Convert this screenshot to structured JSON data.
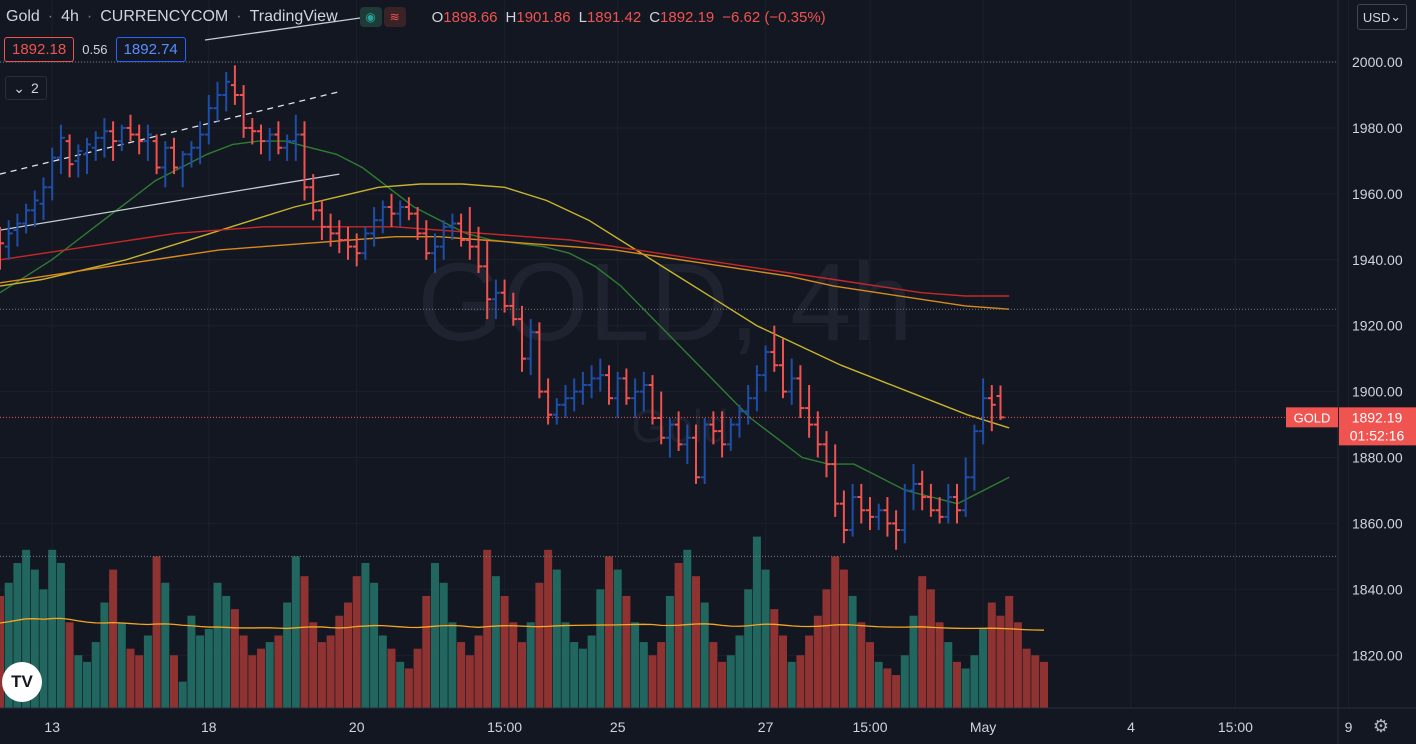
{
  "header": {
    "symbol": "Gold",
    "interval": "4h",
    "exchange": "CURRENCYCOM",
    "source": "TradingView",
    "ohlc": {
      "o_label": "O",
      "o": "1898.66",
      "h_label": "H",
      "h": "1901.86",
      "l_label": "L",
      "l": "1891.42",
      "c_label": "C",
      "c": "1892.19",
      "change": "−6.62 (−0.35%)"
    }
  },
  "trade": {
    "sell": "1892.18",
    "spread": "0.56",
    "buy": "1892.74"
  },
  "indicators_count": "2",
  "currency": "USD",
  "watermark": {
    "symbol": "GOLD, 4h",
    "description": "Gold"
  },
  "last_price": {
    "ticker": "GOLD",
    "price": "1892.19",
    "countdown": "01:52:16"
  },
  "colors": {
    "up": "#1e4ea8",
    "down": "#ef5350",
    "vol_up": "#22675f",
    "vol_down": "#8e3232",
    "ma_green": "#2e7d32",
    "ma_yellow": "#c8b42c",
    "ma_orange": "#d98a1c",
    "ma_red": "#c62828",
    "vol_ma": "#f5a623",
    "background": "#131722"
  },
  "chart_data": {
    "type": "ohlc-bar",
    "ylim": [
      1804,
      2017
    ],
    "y_ticks": [
      1820,
      1840,
      1860,
      1880,
      1900,
      1920,
      1940,
      1960,
      1980,
      2000
    ],
    "x_ticks": [
      {
        "label": "13",
        "bar": 6
      },
      {
        "label": "18",
        "bar": 24
      },
      {
        "label": "20",
        "bar": 41
      },
      {
        "label": "15:00",
        "bar": 58
      },
      {
        "label": "25",
        "bar": 71
      },
      {
        "label": "27",
        "bar": 88
      },
      {
        "label": "15:00",
        "bar": 100
      },
      {
        "label": "May",
        "bar": 113
      },
      {
        "label": "4",
        "bar": 130
      },
      {
        "label": "15:00",
        "bar": 142
      },
      {
        "label": "9",
        "bar": 155
      }
    ],
    "ohlc": [
      [
        1946,
        1950,
        1937,
        1945
      ],
      [
        1944,
        1952,
        1940,
        1948
      ],
      [
        1949,
        1954,
        1944,
        1951
      ],
      [
        1951,
        1957,
        1948,
        1955
      ],
      [
        1955,
        1961,
        1950,
        1958
      ],
      [
        1957,
        1965,
        1952,
        1962
      ],
      [
        1962,
        1974,
        1958,
        1971
      ],
      [
        1971,
        1981,
        1966,
        1977
      ],
      [
        1976,
        1978,
        1965,
        1969
      ],
      [
        1970,
        1975,
        1965,
        1973
      ],
      [
        1972,
        1977,
        1966,
        1975
      ],
      [
        1974,
        1979,
        1970,
        1977
      ],
      [
        1977,
        1983,
        1971,
        1979
      ],
      [
        1979,
        1982,
        1970,
        1976
      ],
      [
        1976,
        1981,
        1973,
        1980
      ],
      [
        1980,
        1984,
        1976,
        1978
      ],
      [
        1978,
        1981,
        1972,
        1976
      ],
      [
        1976,
        1981,
        1970,
        1978
      ],
      [
        1976,
        1978,
        1966,
        1968
      ],
      [
        1968,
        1976,
        1962,
        1974
      ],
      [
        1974,
        1977,
        1966,
        1968
      ],
      [
        1968,
        1973,
        1962,
        1972
      ],
      [
        1972,
        1976,
        1968,
        1974
      ],
      [
        1974,
        1982,
        1969,
        1978
      ],
      [
        1978,
        1990,
        1975,
        1986
      ],
      [
        1986,
        1994,
        1982,
        1990
      ],
      [
        1990,
        1997,
        1985,
        1994
      ],
      [
        1993,
        1999,
        1987,
        1990
      ],
      [
        1990,
        1993,
        1977,
        1980
      ],
      [
        1980,
        1983,
        1975,
        1979
      ],
      [
        1979,
        1981,
        1972,
        1976
      ],
      [
        1976,
        1980,
        1970,
        1978
      ],
      [
        1978,
        1982,
        1972,
        1974
      ],
      [
        1974,
        1978,
        1970,
        1976
      ],
      [
        1976,
        1984,
        1970,
        1978
      ],
      [
        1978,
        1982,
        1958,
        1962
      ],
      [
        1962,
        1966,
        1952,
        1955
      ],
      [
        1955,
        1958,
        1946,
        1950
      ],
      [
        1950,
        1954,
        1944,
        1948
      ],
      [
        1948,
        1952,
        1942,
        1946
      ],
      [
        1946,
        1950,
        1940,
        1944
      ],
      [
        1944,
        1948,
        1938,
        1942
      ],
      [
        1942,
        1950,
        1940,
        1948
      ],
      [
        1948,
        1956,
        1944,
        1952
      ],
      [
        1952,
        1958,
        1948,
        1956
      ],
      [
        1956,
        1960,
        1950,
        1954
      ],
      [
        1954,
        1958,
        1950,
        1956
      ],
      [
        1956,
        1959,
        1952,
        1954
      ],
      [
        1954,
        1956,
        1946,
        1948
      ],
      [
        1948,
        1952,
        1940,
        1942
      ],
      [
        1942,
        1948,
        1936,
        1944
      ],
      [
        1944,
        1952,
        1940,
        1950
      ],
      [
        1950,
        1954,
        1946,
        1951
      ],
      [
        1951,
        1954,
        1944,
        1946
      ],
      [
        1946,
        1956,
        1940,
        1944
      ],
      [
        1944,
        1950,
        1936,
        1938
      ],
      [
        1938,
        1946,
        1922,
        1928
      ],
      [
        1928,
        1934,
        1922,
        1930
      ],
      [
        1930,
        1934,
        1924,
        1926
      ],
      [
        1926,
        1930,
        1920,
        1922
      ],
      [
        1922,
        1926,
        1906,
        1910
      ],
      [
        1910,
        1922,
        1905,
        1918
      ],
      [
        1918,
        1921,
        1898,
        1900
      ],
      [
        1900,
        1904,
        1890,
        1893
      ],
      [
        1893,
        1898,
        1890,
        1896
      ],
      [
        1896,
        1902,
        1892,
        1898
      ],
      [
        1898,
        1904,
        1894,
        1900
      ],
      [
        1900,
        1906,
        1896,
        1902
      ],
      [
        1902,
        1908,
        1898,
        1904
      ],
      [
        1904,
        1910,
        1900,
        1905
      ],
      [
        1905,
        1908,
        1896,
        1898
      ],
      [
        1898,
        1906,
        1892,
        1904
      ],
      [
        1904,
        1907,
        1896,
        1898
      ],
      [
        1898,
        1904,
        1892,
        1900
      ],
      [
        1900,
        1906,
        1894,
        1902
      ],
      [
        1902,
        1905,
        1890,
        1892
      ],
      [
        1892,
        1900,
        1884,
        1886
      ],
      [
        1886,
        1892,
        1880,
        1890
      ],
      [
        1890,
        1894,
        1882,
        1884
      ],
      [
        1884,
        1890,
        1878,
        1886
      ],
      [
        1886,
        1890,
        1872,
        1874
      ],
      [
        1874,
        1892,
        1872,
        1890
      ],
      [
        1890,
        1894,
        1884,
        1888
      ],
      [
        1888,
        1894,
        1880,
        1884
      ],
      [
        1884,
        1892,
        1882,
        1890
      ],
      [
        1890,
        1896,
        1886,
        1894
      ],
      [
        1894,
        1902,
        1890,
        1898
      ],
      [
        1898,
        1908,
        1894,
        1905
      ],
      [
        1905,
        1914,
        1900,
        1912
      ],
      [
        1912,
        1920,
        1906,
        1908
      ],
      [
        1908,
        1916,
        1898,
        1900
      ],
      [
        1900,
        1910,
        1896,
        1904
      ],
      [
        1904,
        1908,
        1892,
        1895
      ],
      [
        1895,
        1902,
        1886,
        1890
      ],
      [
        1890,
        1894,
        1880,
        1884
      ],
      [
        1884,
        1888,
        1874,
        1878
      ],
      [
        1878,
        1884,
        1862,
        1866
      ],
      [
        1866,
        1870,
        1854,
        1858
      ],
      [
        1858,
        1872,
        1856,
        1868
      ],
      [
        1868,
        1872,
        1860,
        1864
      ],
      [
        1864,
        1868,
        1858,
        1862
      ],
      [
        1862,
        1866,
        1858,
        1864
      ],
      [
        1864,
        1868,
        1856,
        1860
      ],
      [
        1860,
        1864,
        1852,
        1858
      ],
      [
        1858,
        1872,
        1854,
        1870
      ],
      [
        1870,
        1878,
        1864,
        1872
      ],
      [
        1872,
        1876,
        1864,
        1868
      ],
      [
        1868,
        1872,
        1862,
        1864
      ],
      [
        1864,
        1868,
        1860,
        1862
      ],
      [
        1862,
        1872,
        1860,
        1868
      ],
      [
        1868,
        1872,
        1860,
        1864
      ],
      [
        1864,
        1880,
        1862,
        1874
      ],
      [
        1874,
        1890,
        1870,
        1888
      ],
      [
        1888,
        1904,
        1884,
        1898
      ],
      [
        1898,
        1902,
        1888,
        1896
      ],
      [
        1898.66,
        1901.86,
        1891.42,
        1892.19
      ]
    ],
    "volume": [
      1838,
      1842,
      1848,
      1852,
      1846,
      1840,
      1852,
      1848,
      1830,
      1820,
      1818,
      1824,
      1836,
      1846,
      1830,
      1822,
      1820,
      1826,
      1850,
      1842,
      1820,
      1812,
      1832,
      1826,
      1828,
      1842,
      1838,
      1834,
      1826,
      1820,
      1822,
      1824,
      1826,
      1836,
      1850,
      1844,
      1830,
      1824,
      1826,
      1832,
      1836,
      1844,
      1848,
      1842,
      1826,
      1822,
      1818,
      1816,
      1822,
      1838,
      1848,
      1842,
      1830,
      1824,
      1820,
      1826,
      1852,
      1844,
      1838,
      1830,
      1824,
      1830,
      1842,
      1852,
      1846,
      1830,
      1824,
      1822,
      1826,
      1840,
      1850,
      1846,
      1838,
      1830,
      1824,
      1820,
      1824,
      1838,
      1848,
      1852,
      1844,
      1836,
      1824,
      1818,
      1820,
      1826,
      1840,
      1856,
      1846,
      1834,
      1826,
      1818,
      1820,
      1826,
      1832,
      1840,
      1850,
      1846,
      1838,
      1830,
      1824,
      1818,
      1816,
      1814,
      1820,
      1832,
      1844,
      1840,
      1830,
      1824,
      1818,
      1816,
      1820,
      1828,
      1836,
      1832,
      1838,
      1830,
      1822,
      1820,
      1818
    ],
    "series": [
      {
        "name": "",
        "values": [
          1930,
          1935,
          1940,
          1946,
          1952,
          1958,
          1964,
          1968,
          1972,
          1975,
          1976,
          1976,
          1974,
          1972,
          1968,
          1962,
          1956,
          1952,
          1948,
          1946,
          1945,
          1944,
          1942,
          1938,
          1932,
          1924,
          1916,
          1908,
          1900,
          1892,
          1886,
          1880,
          1878,
          1878,
          1874,
          1870,
          1868,
          1866,
          1870,
          1874
        ]
      },
      {
        "name": "",
        "values": [
          1932,
          1934,
          1937,
          1940,
          1944,
          1948,
          1952,
          1956,
          1959,
          1962,
          1963,
          1963,
          1962,
          1958,
          1952,
          1944,
          1936,
          1928,
          1920,
          1914,
          1908,
          1903,
          1898,
          1893,
          1889
        ]
      },
      {
        "name": "",
        "values": [
          1933,
          1935,
          1937,
          1939,
          1941,
          1943,
          1944,
          1945,
          1946,
          1947,
          1947,
          1946,
          1945,
          1944,
          1943,
          1941,
          1939,
          1937,
          1935,
          1932,
          1930,
          1928,
          1926,
          1925
        ]
      },
      {
        "name": "",
        "values": [
          1940,
          1942,
          1944,
          1946,
          1948,
          1949,
          1950,
          1950,
          1950,
          1950,
          1949,
          1948,
          1947,
          1946,
          1944,
          1942,
          1940,
          1938,
          1936,
          1934,
          1932,
          1930,
          1929,
          1929
        ]
      }
    ]
  }
}
